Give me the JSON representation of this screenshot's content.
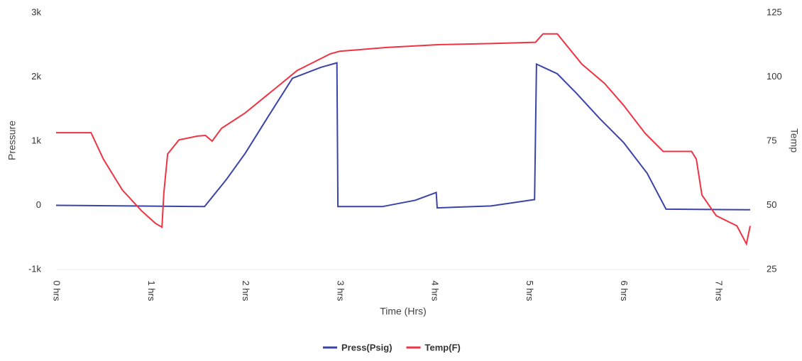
{
  "chart_data": {
    "type": "line",
    "xlabel": "Time (Hrs)",
    "ylabel": "Pressure",
    "y2label": "Temp",
    "xlim": [
      0,
      7.34
    ],
    "xticks": [
      {
        "value": 0,
        "label": "0 hrs"
      },
      {
        "value": 1,
        "label": "1 hrs"
      },
      {
        "value": 2,
        "label": "2 hrs"
      },
      {
        "value": 3,
        "label": "3 hrs"
      },
      {
        "value": 4,
        "label": "4 hrs"
      },
      {
        "value": 5,
        "label": "5 hrs"
      },
      {
        "value": 6,
        "label": "6 hrs"
      },
      {
        "value": 7,
        "label": "7 hrs"
      }
    ],
    "ylim": [
      -1000,
      3000
    ],
    "yticks": [
      {
        "value": -1000,
        "label": "-1k"
      },
      0,
      {
        "value": 1000,
        "label": "1k"
      },
      {
        "value": 2000,
        "label": "2k"
      },
      {
        "value": 3000,
        "label": "3k"
      }
    ],
    "y2lim": [
      25,
      125
    ],
    "y2ticks": [
      25,
      50,
      75,
      100,
      125
    ],
    "legend": "bottom",
    "series": [
      {
        "name": "Press(Psig)",
        "color": "#3a44a8",
        "x": [
          0,
          1.57,
          1.8,
          2.0,
          2.25,
          2.5,
          2.8,
          2.97,
          2.98,
          3.45,
          3.8,
          4.02,
          4.03,
          4.6,
          5.06,
          5.08,
          5.3,
          5.5,
          5.75,
          6.0,
          6.25,
          6.45,
          7.34
        ],
        "values": [
          0,
          -20,
          400,
          810,
          1400,
          1980,
          2150,
          2220,
          -20,
          -20,
          80,
          200,
          -40,
          -10,
          90,
          2200,
          2050,
          1750,
          1350,
          980,
          500,
          -60,
          -70
        ]
      },
      {
        "name": "Temp(F)",
        "color": "#ee3344",
        "axis": "y2",
        "x": [
          0,
          0.37,
          0.5,
          0.7,
          0.9,
          1.05,
          1.12,
          1.14,
          1.18,
          1.3,
          1.5,
          1.58,
          1.65,
          1.75,
          2.0,
          2.3,
          2.55,
          2.9,
          3.0,
          3.5,
          4.06,
          4.6,
          5.07,
          5.15,
          5.3,
          5.56,
          5.8,
          6.0,
          6.23,
          6.42,
          6.72,
          6.77,
          6.83,
          6.98,
          7.2,
          7.3,
          7.34
        ],
        "values": [
          78.3,
          78.3,
          68,
          56,
          48,
          43,
          41.5,
          55,
          70,
          75.5,
          77,
          77.2,
          75,
          80,
          86,
          95,
          102.5,
          109,
          110,
          111.5,
          112.6,
          113,
          113.5,
          116.8,
          116.8,
          105,
          97.5,
          89,
          78,
          71,
          71,
          68,
          54,
          46,
          42,
          35,
          42
        ]
      }
    ]
  }
}
